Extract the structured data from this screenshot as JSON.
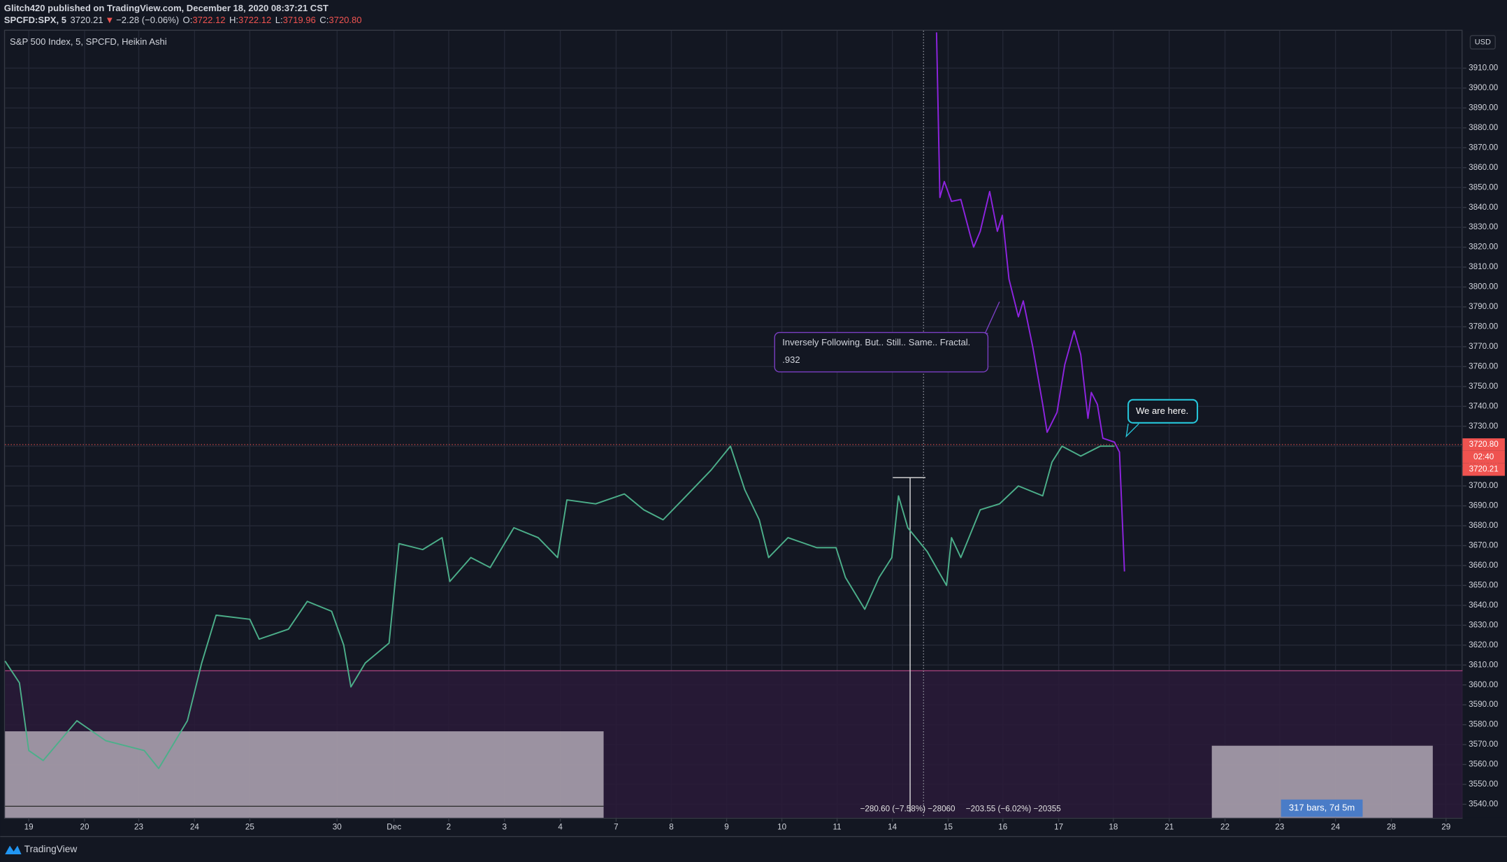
{
  "header": {
    "line1": "Glitch420 published on TradingView.com, December 18, 2020 08:37:21 CST",
    "symbol": "SPCFD:SPX, 5",
    "last": "3720.21",
    "arrow": "▼",
    "change": "−2.28 (−0.06%)",
    "o_label": "O:",
    "o": "3722.12",
    "h_label": "H:",
    "h": "3722.12",
    "l_label": "L:",
    "l": "3719.96",
    "c_label": "C:",
    "c": "3720.80"
  },
  "chart_data": {
    "type": "line",
    "title": "S&P 500 Index, 5, SPCFD, Heikin Ashi",
    "y_unit": "USD",
    "series": [
      {
        "color": "#4caf8a",
        "x": [
          -0.43,
          -0.17,
          0,
          0.26,
          0.87,
          1.39,
          2.09,
          2.35,
          2.87,
          3.13,
          3.39,
          4,
          4.17,
          4.7,
          5.04,
          5.48,
          5.7,
          5.83,
          6.09,
          6.52,
          6.7,
          7.13,
          7.48,
          7.62,
          8,
          8.35,
          8.78,
          9.22,
          9.57,
          9.74,
          10.26,
          10.78,
          11.13,
          11.48,
          11.83,
          12.35,
          12.7,
          12.96,
          13.22,
          13.39,
          13.74,
          14.26,
          14.61,
          14.78,
          15.13,
          15.39,
          15.62,
          15.74,
          15.91,
          16.26,
          16.61,
          16.7,
          16.87,
          17.22,
          17.57,
          17.91,
          18.35,
          18.52,
          18.7,
          19.04,
          19.39,
          19.65
        ],
        "values": [
          3612,
          3601,
          3567,
          3562,
          3582,
          3572,
          3567,
          3558,
          3582,
          3611,
          3635,
          3633,
          3623,
          3628,
          3642,
          3637,
          3620,
          3599,
          3611,
          3621,
          3671,
          3668,
          3674,
          3652,
          3664,
          3659,
          3679,
          3674,
          3664,
          3693,
          3691,
          3696,
          3688,
          3683,
          3693,
          3708,
          3720,
          3698,
          3683,
          3664,
          3674,
          3669,
          3669,
          3654,
          3638,
          3654,
          3664,
          3695,
          3679,
          3667,
          3650,
          3674,
          3664,
          3688,
          3691,
          3700,
          3695,
          3712,
          3720,
          3715,
          3720,
          3720
        ]
      },
      {
        "color": "#8e24e0",
        "x": [
          16.43,
          16.49,
          16.57,
          16.7,
          16.87,
          17.04,
          17.1,
          17.22,
          17.39,
          17.53,
          17.62,
          17.74,
          17.91,
          18,
          18.17,
          18.35,
          18.43,
          18.61,
          18.75,
          18.92,
          19.04,
          19.17,
          19.23,
          19.34,
          19.44,
          19.65,
          19.74,
          19.83
        ],
        "values": [
          3928,
          3845,
          3853,
          3843,
          3844,
          3826,
          3820,
          3828,
          3848,
          3828,
          3836,
          3804,
          3785,
          3793,
          3770,
          3741,
          3727,
          3737,
          3761,
          3778,
          3766,
          3734,
          3747,
          3741,
          3724,
          3722,
          3717,
          3657
        ]
      }
    ],
    "ylim": [
      3533.2,
      3928.8
    ],
    "yticks": [
      {
        "value": 3540,
        "label": "3540.00"
      },
      {
        "value": 3550,
        "label": "3550.00"
      },
      {
        "value": 3560,
        "label": "3560.00"
      },
      {
        "value": 3570,
        "label": "3570.00"
      },
      {
        "value": 3580,
        "label": "3580.00"
      },
      {
        "value": 3590,
        "label": "3590.00"
      },
      {
        "value": 3600,
        "label": "3600.00"
      },
      {
        "value": 3610,
        "label": "3610.00"
      },
      {
        "value": 3620,
        "label": "3620.00"
      },
      {
        "value": 3630,
        "label": "3630.00"
      },
      {
        "value": 3640,
        "label": "3640.00"
      },
      {
        "value": 3650,
        "label": "3650.00"
      },
      {
        "value": 3660,
        "label": "3660.00"
      },
      {
        "value": 3670,
        "label": "3670.00"
      },
      {
        "value": 3680,
        "label": "3680.00"
      },
      {
        "value": 3690,
        "label": "3690.00"
      },
      {
        "value": 3700,
        "label": "3700.00"
      },
      {
        "value": 3710,
        "label": "3710.00"
      },
      {
        "value": 3720,
        "label": "3720.00"
      },
      {
        "value": 3730,
        "label": "3730.00"
      },
      {
        "value": 3740,
        "label": "3740.00"
      },
      {
        "value": 3750,
        "label": "3750.00"
      },
      {
        "value": 3760,
        "label": "3760.00"
      },
      {
        "value": 3770,
        "label": "3770.00"
      },
      {
        "value": 3780,
        "label": "3780.00"
      },
      {
        "value": 3790,
        "label": "3790.00"
      },
      {
        "value": 3800,
        "label": "3800.00"
      },
      {
        "value": 3810,
        "label": "3810.00"
      },
      {
        "value": 3820,
        "label": "3820.00"
      },
      {
        "value": 3830,
        "label": "3830.00"
      },
      {
        "value": 3840,
        "label": "3840.00"
      },
      {
        "value": 3850,
        "label": "3850.00"
      },
      {
        "value": 3860,
        "label": "3860.00"
      },
      {
        "value": 3870,
        "label": "3870.00"
      },
      {
        "value": 3880,
        "label": "3880.00"
      },
      {
        "value": 3890,
        "label": "3890.00"
      },
      {
        "value": 3900,
        "label": "3900.00"
      },
      {
        "value": 3910,
        "label": "3910.00"
      }
    ],
    "xlim": [
      -0.43,
      25.95
    ],
    "xticks": [
      {
        "value": 0,
        "label": "19"
      },
      {
        "value": 1.01,
        "label": "20"
      },
      {
        "value": 1.99,
        "label": "23"
      },
      {
        "value": 3,
        "label": "24"
      },
      {
        "value": 4,
        "label": "25"
      },
      {
        "value": 5.58,
        "label": "30"
      },
      {
        "value": 6.61,
        "label": "Dec"
      },
      {
        "value": 7.6,
        "label": "2"
      },
      {
        "value": 8.61,
        "label": "3"
      },
      {
        "value": 9.62,
        "label": "4"
      },
      {
        "value": 10.63,
        "label": "7"
      },
      {
        "value": 11.63,
        "label": "8"
      },
      {
        "value": 12.63,
        "label": "9"
      },
      {
        "value": 13.63,
        "label": "10"
      },
      {
        "value": 14.63,
        "label": "11"
      },
      {
        "value": 15.63,
        "label": "14"
      },
      {
        "value": 16.64,
        "label": "15"
      },
      {
        "value": 17.63,
        "label": "16"
      },
      {
        "value": 18.64,
        "label": "17"
      },
      {
        "value": 19.63,
        "label": "18"
      },
      {
        "value": 20.64,
        "label": "21"
      },
      {
        "value": 21.65,
        "label": "22"
      },
      {
        "value": 22.64,
        "label": "23"
      },
      {
        "value": 23.65,
        "label": "24"
      },
      {
        "value": 24.66,
        "label": "28"
      },
      {
        "value": 25.65,
        "label": "29"
      }
    ],
    "grid": true,
    "last_price": {
      "value": 3720.8,
      "label": "3720.80"
    },
    "countdown": "02:40",
    "annotations": {
      "note_line1": "Inversely Following. But.. Still.. Same.. Fractal.",
      "note_line2": ".932",
      "here": "We are here.",
      "measure1": "−280.60 (−7.58%) −28060",
      "measure2": "−203.55 (−6.02%) −20355",
      "range": "317 bars, 7d 5m"
    }
  },
  "footer": {
    "brand": "TradingView"
  }
}
